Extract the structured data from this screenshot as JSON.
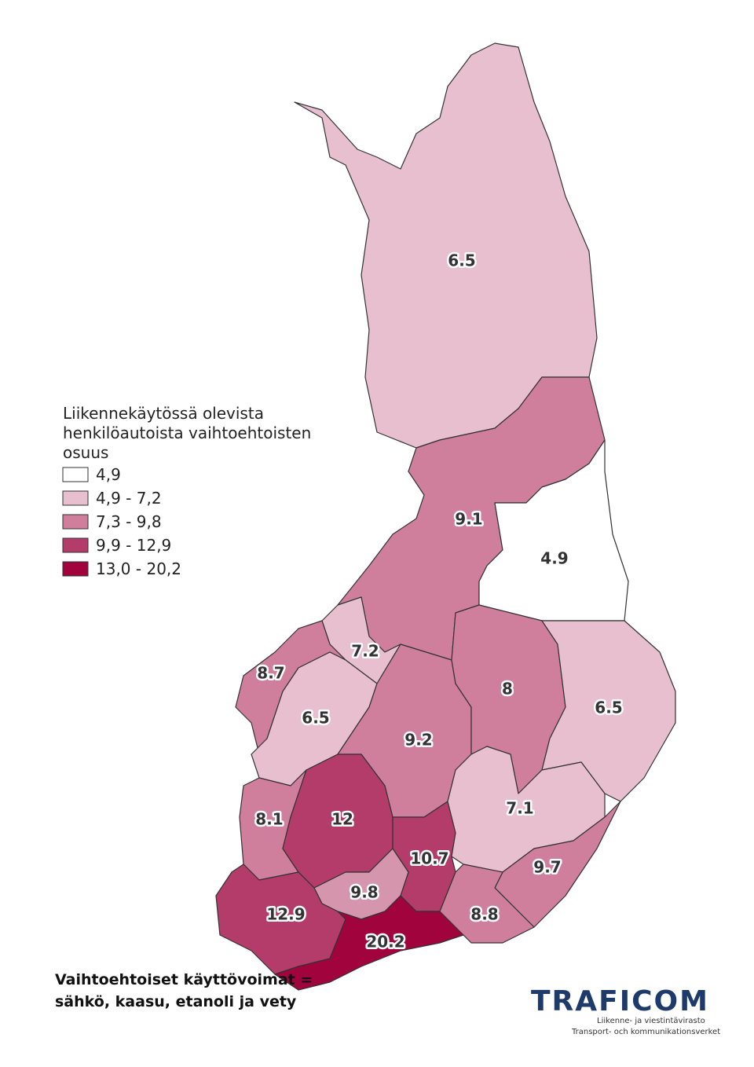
{
  "chart_data": {
    "type": "choropleth",
    "legend": {
      "title_lines": [
        "Liikennekäytössä olevista",
        "henkilöautoista vaihtoehtoisten",
        "osuus"
      ],
      "classes": [
        {
          "label": "4,9",
          "color": "#ffffff"
        },
        {
          "label": "4,9 - 7,2",
          "color": "#e8bfcf"
        },
        {
          "label": "7,3 - 9,8",
          "color": "#cf7f9c"
        },
        {
          "label": "9,9 - 12,9",
          "color": "#b43c6a"
        },
        {
          "label": "13,0 - 20,2",
          "color": "#a1033d"
        }
      ]
    },
    "regions": [
      {
        "value": 6.5,
        "color": "#e8bfcf"
      },
      {
        "value": 9.1,
        "color": "#cf7f9c"
      },
      {
        "value": 4.9,
        "color": "#ffffff"
      },
      {
        "value": 7.2,
        "color": "#e8bfcf"
      },
      {
        "value": 8.7,
        "color": "#cf7f9c"
      },
      {
        "value": 6.5,
        "color": "#e8bfcf"
      },
      {
        "value": 9.2,
        "color": "#cf7f9c"
      },
      {
        "value": 8,
        "color": "#cf7f9c"
      },
      {
        "value": 6.5,
        "color": "#e8bfcf"
      },
      {
        "value": 8.1,
        "color": "#cf7f9c"
      },
      {
        "value": 12,
        "color": "#b43c6a"
      },
      {
        "value": 10.7,
        "color": "#b43c6a"
      },
      {
        "value": 7.1,
        "color": "#e8bfcf"
      },
      {
        "value": 9.7,
        "color": "#cf7f9c"
      },
      {
        "value": 9.8,
        "color": "#d595ad"
      },
      {
        "value": 12.9,
        "color": "#b43c6a"
      },
      {
        "value": 20.2,
        "color": "#a1033d"
      },
      {
        "value": 8.8,
        "color": "#cf7f9c"
      }
    ],
    "footnote_lines": [
      "Vaihtoehtoiset käyttövoimat =",
      "sähkö, kaasu, etanoli ja vety"
    ],
    "logo": {
      "name": "TRAFICOM",
      "subtitle_lines": [
        "Liikenne- ja viestintävirasto",
        "Transport- och kommunikationsverket"
      ]
    }
  }
}
